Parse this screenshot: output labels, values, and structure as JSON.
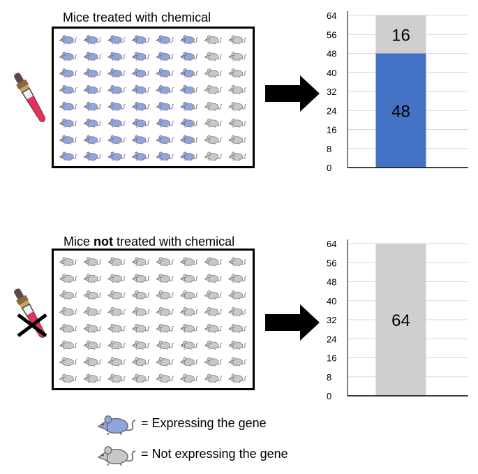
{
  "panels": [
    {
      "id": "treated",
      "title_pre": "Mice treated with chemical",
      "title_bold": "",
      "title_post": "",
      "grid": {
        "rows": 8,
        "cols": 8,
        "expressing_cols": 6
      },
      "dropper_crossed": false
    },
    {
      "id": "untreated",
      "title_pre": "Mice ",
      "title_bold": "not",
      "title_post": " treated with chemical",
      "grid": {
        "rows": 8,
        "cols": 8,
        "expressing_cols": 0
      },
      "dropper_crossed": true
    }
  ],
  "legend": {
    "expressing": "= Expressing the gene",
    "not_expressing": "= Not expressing the gene"
  },
  "colors": {
    "expressing": "#8fa6dc",
    "not_expressing": "#c8c8c8",
    "bar_expressing": "#4472c4",
    "bar_not_expressing": "#d0cece",
    "dropper_liquid": "#e8305a"
  },
  "chart_data": [
    {
      "type": "bar",
      "stacked": true,
      "categories": [
        ""
      ],
      "series": [
        {
          "key": "expressing",
          "values": [
            48
          ],
          "label": "48"
        },
        {
          "key": "not_expressing",
          "values": [
            16
          ],
          "label": "16"
        }
      ],
      "ylim": [
        0,
        64
      ],
      "yticks": [
        "0",
        "8",
        "16",
        "24",
        "32",
        "40",
        "48",
        "56",
        "64"
      ],
      "grid": true
    },
    {
      "type": "bar",
      "stacked": true,
      "categories": [
        ""
      ],
      "series": [
        {
          "key": "expressing",
          "values": [
            0
          ],
          "label": ""
        },
        {
          "key": "not_expressing",
          "values": [
            64
          ],
          "label": "64"
        }
      ],
      "ylim": [
        0,
        64
      ],
      "yticks": [
        "0",
        "8",
        "16",
        "24",
        "32",
        "40",
        "48",
        "56",
        "64"
      ],
      "grid": true
    }
  ]
}
